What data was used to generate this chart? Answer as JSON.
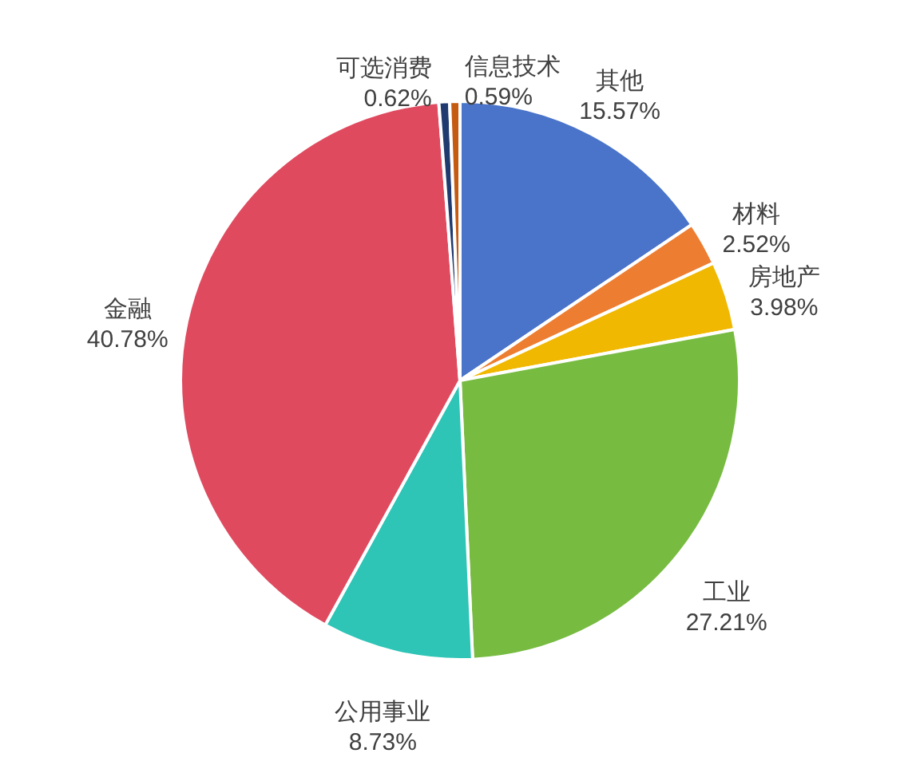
{
  "chart_data": {
    "type": "pie",
    "categories": [
      "其他",
      "材料",
      "房地产",
      "工业",
      "公用事业",
      "金融",
      "可选消费",
      "信息技术"
    ],
    "values": [
      15.57,
      2.52,
      3.98,
      27.21,
      8.73,
      40.78,
      0.62,
      0.59
    ],
    "colors": [
      "#4a74c9",
      "#ed7d31",
      "#f0b800",
      "#77bb41",
      "#2ec4b6",
      "#e04a5f",
      "#1f3a6e",
      "#c55a11"
    ],
    "data_labels": true,
    "value_labels": [
      "15.57%",
      "2.52%",
      "3.98%",
      "27.21%",
      "8.73%",
      "40.78%",
      "0.62%",
      "0.59%"
    ]
  }
}
